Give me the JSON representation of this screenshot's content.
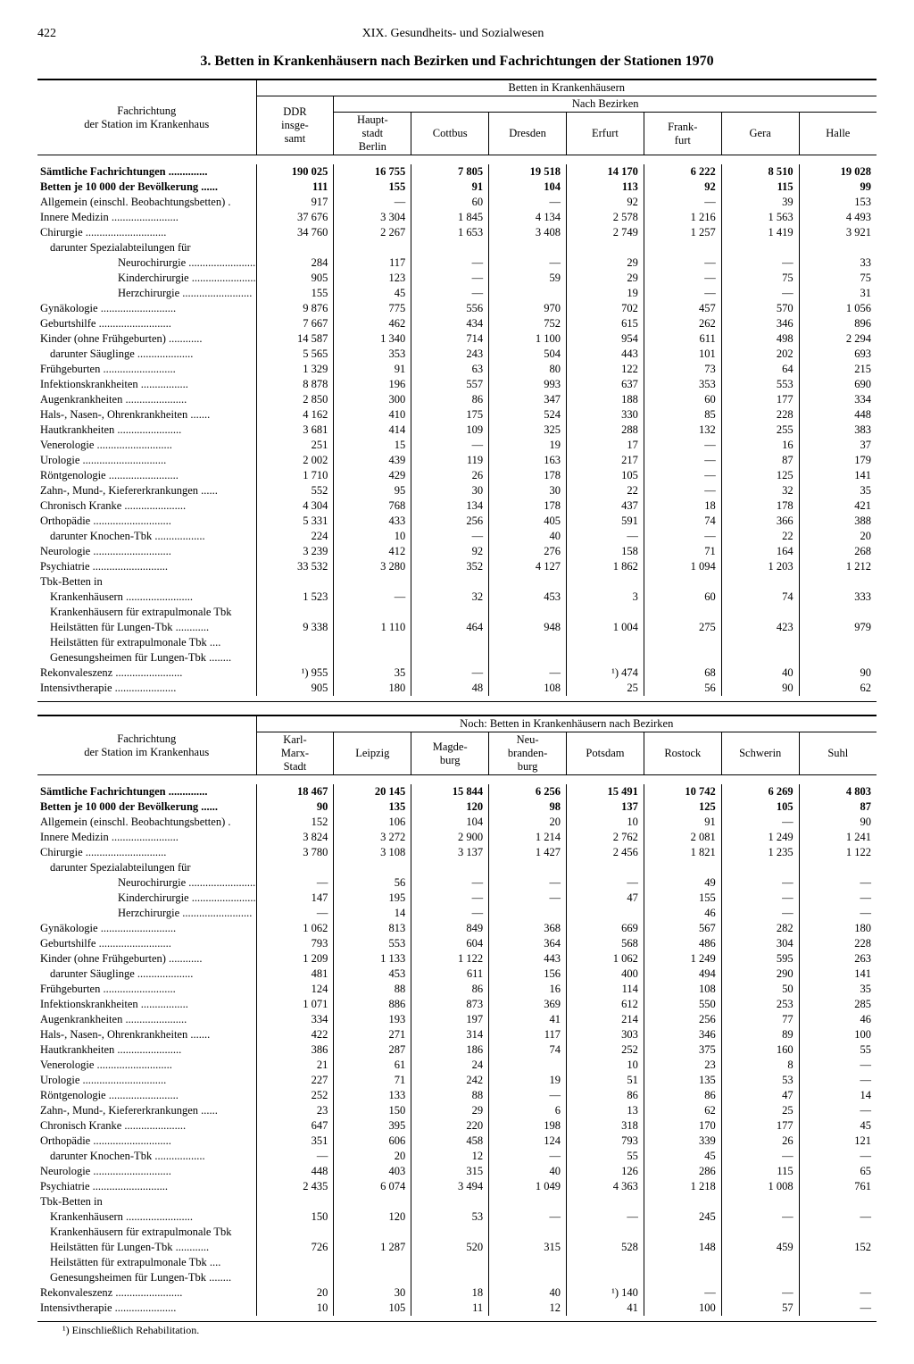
{
  "page_number": "422",
  "section": "XIX. Gesundheits- und Sozialwesen",
  "title": "3. Betten in Krankenhäusern nach Bezirken und Fachrichtungen der Stationen 1970",
  "stub_header": [
    "Fachrichtung",
    "der Station im Krankenhaus"
  ],
  "span_header_top": "Betten in Krankenhäusern",
  "span_header_sub": "Nach Bezirken",
  "span_header_bottom": "Noch: Betten in Krankenhäusern nach Bezirken",
  "ddr_header": [
    "DDR",
    "insge-",
    "samt"
  ],
  "cols_top": [
    [
      "Haupt-",
      "stadt",
      "Berlin"
    ],
    [
      "Cottbus"
    ],
    [
      "Dresden"
    ],
    [
      "Erfurt"
    ],
    [
      "Frank-",
      "furt"
    ],
    [
      "Gera"
    ],
    [
      "Halle"
    ]
  ],
  "cols_bot": [
    [
      "Karl-",
      "Marx-",
      "Stadt"
    ],
    [
      "Leipzig"
    ],
    [
      "Magde-",
      "burg"
    ],
    [
      "Neu-",
      "branden-",
      "burg"
    ],
    [
      "Potsdam"
    ],
    [
      "Rostock"
    ],
    [
      "Schwerin"
    ],
    [
      "Suhl"
    ]
  ],
  "footnote": "¹) Einschließlich Rehabilitation.",
  "rows": [
    {
      "l": "Sämtliche Fachrichtungen",
      "bold": true,
      "dots": true,
      "t": [
        "190 025",
        "16 755",
        "7 805",
        "19 518",
        "14 170",
        "6 222",
        "8 510",
        "19 028"
      ],
      "b": [
        "18 467",
        "20 145",
        "15 844",
        "6 256",
        "15 491",
        "10 742",
        "6 269",
        "4 803"
      ]
    },
    {
      "l": "Betten je 10 000 der Bevölkerung",
      "bold": true,
      "dots": true,
      "t": [
        "111",
        "155",
        "91",
        "104",
        "113",
        "92",
        "115",
        "99"
      ],
      "b": [
        "90",
        "135",
        "120",
        "98",
        "137",
        "125",
        "105",
        "87"
      ]
    },
    {
      "l": "Allgemein (einschl. Beobachtungsbetten) .",
      "dots": false,
      "t": [
        "917",
        "—",
        "60",
        "—",
        "92",
        "—",
        "39",
        "153"
      ],
      "b": [
        "152",
        "106",
        "104",
        "20",
        "10",
        "91",
        "—",
        "90"
      ]
    },
    {
      "l": "Innere Medizin",
      "dots": true,
      "t": [
        "37 676",
        "3 304",
        "1 845",
        "4 134",
        "2 578",
        "1 216",
        "1 563",
        "4 493"
      ],
      "b": [
        "3 824",
        "3 272",
        "2 900",
        "1 214",
        "2 762",
        "2 081",
        "1 249",
        "1 241"
      ]
    },
    {
      "l": "Chirurgie",
      "dots": true,
      "t": [
        "34 760",
        "2 267",
        "1 653",
        "3 408",
        "2 749",
        "1 257",
        "1 419",
        "3 921"
      ],
      "b": [
        "3 780",
        "3 108",
        "3 137",
        "1 427",
        "2 456",
        "1 821",
        "1 235",
        "1 122"
      ]
    },
    {
      "l": "darunter Spezialabteilungen für",
      "ind": 1,
      "dots": false,
      "t": [
        "",
        "",
        "",
        "",
        "",
        "",
        "",
        ""
      ],
      "b": [
        "",
        "",
        "",
        "",
        "",
        "",
        "",
        ""
      ]
    },
    {
      "l": "Neurochirurgie",
      "ind": 2,
      "dots": true,
      "t": [
        "284",
        "117",
        "—",
        "—",
        "29",
        "—",
        "—",
        "33"
      ],
      "b": [
        "—",
        "56",
        "—",
        "—",
        "—",
        "49",
        "—",
        "—"
      ]
    },
    {
      "l": "Kinderchirurgie",
      "ind": 2,
      "dots": true,
      "t": [
        "905",
        "123",
        "—",
        "59",
        "29",
        "—",
        "75",
        "75"
      ],
      "b": [
        "147",
        "195",
        "—",
        "—",
        "47",
        "155",
        "—",
        "—"
      ]
    },
    {
      "l": "Herzchirurgie",
      "ind": 2,
      "dots": true,
      "t": [
        "155",
        "45",
        "—",
        "",
        "19",
        "—",
        "—",
        "31"
      ],
      "b": [
        "—",
        "14",
        "—",
        "",
        "",
        "46",
        "—",
        "—"
      ]
    },
    {
      "l": "Gynäkologie",
      "dots": true,
      "t": [
        "9 876",
        "775",
        "556",
        "970",
        "702",
        "457",
        "570",
        "1 056"
      ],
      "b": [
        "1 062",
        "813",
        "849",
        "368",
        "669",
        "567",
        "282",
        "180"
      ]
    },
    {
      "l": "Geburtshilfe",
      "dots": true,
      "t": [
        "7 667",
        "462",
        "434",
        "752",
        "615",
        "262",
        "346",
        "896"
      ],
      "b": [
        "793",
        "553",
        "604",
        "364",
        "568",
        "486",
        "304",
        "228"
      ]
    },
    {
      "l": "Kinder (ohne Frühgeburten)",
      "dots": true,
      "t": [
        "14 587",
        "1 340",
        "714",
        "1 100",
        "954",
        "611",
        "498",
        "2 294"
      ],
      "b": [
        "1 209",
        "1 133",
        "1 122",
        "443",
        "1 062",
        "1 249",
        "595",
        "263"
      ]
    },
    {
      "l": "darunter Säuglinge",
      "ind": 1,
      "dots": true,
      "t": [
        "5 565",
        "353",
        "243",
        "504",
        "443",
        "101",
        "202",
        "693"
      ],
      "b": [
        "481",
        "453",
        "611",
        "156",
        "400",
        "494",
        "290",
        "141"
      ]
    },
    {
      "l": "Frühgeburten",
      "dots": true,
      "t": [
        "1 329",
        "91",
        "63",
        "80",
        "122",
        "73",
        "64",
        "215"
      ],
      "b": [
        "124",
        "88",
        "86",
        "16",
        "114",
        "108",
        "50",
        "35"
      ]
    },
    {
      "l": "Infektionskrankheiten",
      "dots": true,
      "t": [
        "8 878",
        "196",
        "557",
        "993",
        "637",
        "353",
        "553",
        "690"
      ],
      "b": [
        "1 071",
        "886",
        "873",
        "369",
        "612",
        "550",
        "253",
        "285"
      ]
    },
    {
      "l": "Augenkrankheiten",
      "dots": true,
      "t": [
        "2 850",
        "300",
        "86",
        "347",
        "188",
        "60",
        "177",
        "334"
      ],
      "b": [
        "334",
        "193",
        "197",
        "41",
        "214",
        "256",
        "77",
        "46"
      ]
    },
    {
      "l": "Hals-, Nasen-, Ohrenkrankheiten",
      "dots": true,
      "t": [
        "4 162",
        "410",
        "175",
        "524",
        "330",
        "85",
        "228",
        "448"
      ],
      "b": [
        "422",
        "271",
        "314",
        "117",
        "303",
        "346",
        "89",
        "100"
      ]
    },
    {
      "l": "Hautkrankheiten",
      "dots": true,
      "t": [
        "3 681",
        "414",
        "109",
        "325",
        "288",
        "132",
        "255",
        "383"
      ],
      "b": [
        "386",
        "287",
        "186",
        "74",
        "252",
        "375",
        "160",
        "55"
      ]
    },
    {
      "l": "Venerologie",
      "dots": true,
      "t": [
        "251",
        "15",
        "—",
        "19",
        "17",
        "—",
        "16",
        "37"
      ],
      "b": [
        "21",
        "61",
        "24",
        "",
        "10",
        "23",
        "8",
        "—"
      ]
    },
    {
      "l": "Urologie",
      "dots": true,
      "t": [
        "2 002",
        "439",
        "119",
        "163",
        "217",
        "—",
        "87",
        "179"
      ],
      "b": [
        "227",
        "71",
        "242",
        "19",
        "51",
        "135",
        "53",
        "—"
      ]
    },
    {
      "l": "Röntgenologie",
      "dots": true,
      "t": [
        "1 710",
        "429",
        "26",
        "178",
        "105",
        "—",
        "125",
        "141"
      ],
      "b": [
        "252",
        "133",
        "88",
        "—",
        "86",
        "86",
        "47",
        "14"
      ]
    },
    {
      "l": "Zahn-, Mund-, Kiefererkrankungen",
      "dots": true,
      "t": [
        "552",
        "95",
        "30",
        "30",
        "22",
        "—",
        "32",
        "35"
      ],
      "b": [
        "23",
        "150",
        "29",
        "6",
        "13",
        "62",
        "25",
        "—"
      ]
    },
    {
      "l": "Chronisch Kranke",
      "dots": true,
      "t": [
        "4 304",
        "768",
        "134",
        "178",
        "437",
        "18",
        "178",
        "421"
      ],
      "b": [
        "647",
        "395",
        "220",
        "198",
        "318",
        "170",
        "177",
        "45"
      ]
    },
    {
      "l": "Orthopädie",
      "dots": true,
      "t": [
        "5 331",
        "433",
        "256",
        "405",
        "591",
        "74",
        "366",
        "388"
      ],
      "b": [
        "351",
        "606",
        "458",
        "124",
        "793",
        "339",
        "26",
        "121"
      ]
    },
    {
      "l": "darunter Knochen-Tbk",
      "ind": 1,
      "dots": true,
      "t": [
        "224",
        "10",
        "—",
        "40",
        "—",
        "—",
        "22",
        "20"
      ],
      "b": [
        "—",
        "20",
        "12",
        "—",
        "55",
        "45",
        "—",
        "—"
      ]
    },
    {
      "l": "Neurologie",
      "dots": true,
      "t": [
        "3 239",
        "412",
        "92",
        "276",
        "158",
        "71",
        "164",
        "268"
      ],
      "b": [
        "448",
        "403",
        "315",
        "40",
        "126",
        "286",
        "115",
        "65"
      ]
    },
    {
      "l": "Psychiatrie",
      "dots": true,
      "t": [
        "33 532",
        "3 280",
        "352",
        "4 127",
        "1 862",
        "1 094",
        "1 203",
        "1 212"
      ],
      "b": [
        "2 435",
        "6 074",
        "3 494",
        "1 049",
        "4 363",
        "1 218",
        "1 008",
        "761"
      ]
    },
    {
      "l": "Tbk-Betten in",
      "dots": false,
      "t": [
        "",
        "",
        "",
        "",
        "",
        "",
        "",
        ""
      ],
      "b": [
        "",
        "",
        "",
        "",
        "",
        "",
        "",
        ""
      ]
    },
    {
      "l": "Krankenhäusern",
      "ind": 1,
      "dots": true,
      "brace_t": "top",
      "brace_b": "top",
      "t": [
        "1 523",
        "—",
        "32",
        "453",
        "3",
        "60",
        "74",
        "333"
      ],
      "b": [
        "150",
        "120",
        "53",
        "—",
        "—",
        "245",
        "—",
        "—"
      ]
    },
    {
      "l": "Krankenhäusern für extrapulmonale Tbk",
      "ind": 1,
      "dots": false,
      "brace_t": "mid",
      "brace_b": "mid",
      "t": [
        "",
        "",
        "",
        "",
        "",
        "",
        "",
        ""
      ],
      "b": [
        "",
        "",
        "",
        "",
        "",
        "",
        "",
        ""
      ]
    },
    {
      "l": "Heilstätten für Lungen-Tbk",
      "ind": 1,
      "dots": true,
      "brace_t": "mid",
      "brace_b": "mid",
      "t": [
        "9 338",
        "1 110",
        "464",
        "948",
        "1 004",
        "275",
        "423",
        "979"
      ],
      "b": [
        "726",
        "1 287",
        "520",
        "315",
        "528",
        "148",
        "459",
        "152"
      ]
    },
    {
      "l": "Heilstätten für extrapulmonale Tbk",
      "ind": 1,
      "dots": true,
      "brace_t": "mid",
      "brace_b": "mid",
      "t": [
        "",
        "",
        "",
        "",
        "",
        "",
        "",
        ""
      ],
      "b": [
        "",
        "",
        "",
        "",
        "",
        "",
        "",
        ""
      ]
    },
    {
      "l": "Genesungsheimen für Lungen-Tbk",
      "ind": 1,
      "dots": true,
      "brace_t": "bot",
      "brace_b": "bot",
      "t": [
        "",
        "",
        "",
        "",
        "",
        "",
        "",
        ""
      ],
      "b": [
        "",
        "",
        "",
        "",
        "",
        "",
        "",
        ""
      ]
    },
    {
      "l": "Rekonvaleszenz",
      "dots": true,
      "t": [
        "¹)    955",
        "35",
        "—",
        "—",
        "¹)    474",
        "68",
        "40",
        "90"
      ],
      "b": [
        "20",
        "30",
        "18",
        "40",
        "¹)    140",
        "—",
        "—",
        "—"
      ]
    },
    {
      "l": "Intensivtherapie",
      "dots": true,
      "t": [
        "905",
        "180",
        "48",
        "108",
        "25",
        "56",
        "90",
        "62"
      ],
      "b": [
        "10",
        "105",
        "11",
        "12",
        "41",
        "100",
        "57",
        "—"
      ]
    }
  ]
}
